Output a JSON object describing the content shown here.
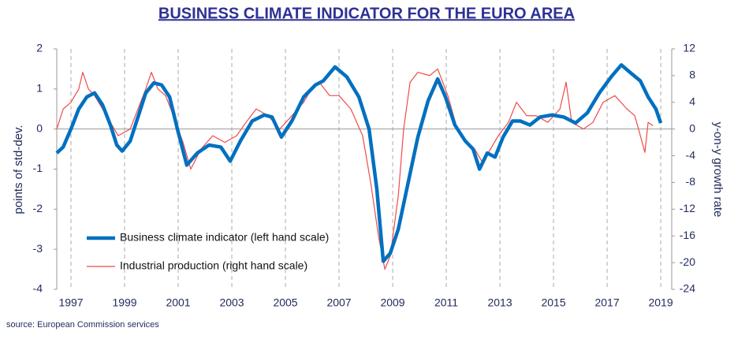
{
  "chart_data": {
    "type": "line",
    "title": "BUSINESS CLIMATE INDICATOR FOR THE EURO AREA",
    "ylabel": "points of std-dev.",
    "y2label": "y-on-y growth rate",
    "source": "source: European Commission services",
    "xlim": [
      1996.47,
      2019.41
    ],
    "xticks": [
      1997,
      1999,
      2001,
      2003,
      2005,
      2007,
      2009,
      2011,
      2013,
      2015,
      2017,
      2019
    ],
    "ylim": [
      -4,
      2
    ],
    "yticks": [
      -4,
      -3,
      -2,
      -1,
      0,
      1,
      2
    ],
    "y2lim": [
      -24,
      12
    ],
    "y2ticks": [
      -24,
      -20,
      -16,
      -12,
      -8,
      -4,
      0,
      4,
      8,
      12
    ],
    "grid": true,
    "legend": "lower left",
    "series": [
      {
        "name": "Business climate indicator (left hand scale)",
        "color": "#0070c0",
        "x": [
          1996.47,
          1996.71,
          1997.0,
          1997.29,
          1997.59,
          1997.88,
          1998.18,
          1998.47,
          1998.71,
          1998.91,
          1999.21,
          1999.5,
          1999.79,
          2000.09,
          2000.38,
          2000.68,
          2000.97,
          2001.32,
          2001.71,
          2002.15,
          2002.59,
          2002.94,
          2003.32,
          2003.76,
          2004.21,
          2004.5,
          2004.85,
          2005.24,
          2005.68,
          2006.12,
          2006.41,
          2006.85,
          2007.29,
          2007.74,
          2008.12,
          2008.41,
          2008.65,
          2008.91,
          2009.21,
          2009.59,
          2009.94,
          2010.32,
          2010.68,
          2010.97,
          2011.32,
          2011.71,
          2012.0,
          2012.24,
          2012.53,
          2012.82,
          2013.12,
          2013.47,
          2013.76,
          2014.12,
          2014.5,
          2014.94,
          2015.38,
          2015.82,
          2016.26,
          2016.71,
          2017.15,
          2017.53,
          2017.88,
          2018.24,
          2018.53,
          2018.82,
          2019.0
        ],
        "values": [
          -0.6,
          -0.45,
          0.0,
          0.5,
          0.8,
          0.9,
          0.6,
          0.1,
          -0.4,
          -0.55,
          -0.3,
          0.3,
          0.9,
          1.15,
          1.1,
          0.8,
          0.0,
          -0.9,
          -0.6,
          -0.4,
          -0.45,
          -0.8,
          -0.3,
          0.2,
          0.35,
          0.3,
          -0.2,
          0.2,
          0.8,
          1.1,
          1.2,
          1.55,
          1.3,
          0.8,
          0.0,
          -1.5,
          -3.3,
          -3.1,
          -2.5,
          -1.3,
          -0.2,
          0.7,
          1.25,
          0.8,
          0.1,
          -0.3,
          -0.5,
          -1.0,
          -0.6,
          -0.7,
          -0.2,
          0.2,
          0.2,
          0.1,
          0.3,
          0.35,
          0.3,
          0.15,
          0.4,
          0.9,
          1.3,
          1.6,
          1.4,
          1.2,
          0.8,
          0.5,
          0.15
        ]
      },
      {
        "name": "Industrial production (right hand scale)",
        "color": "#f04a4a",
        "axis": "y2",
        "x": [
          1996.47,
          1996.71,
          1997.0,
          1997.29,
          1997.44,
          1997.65,
          1997.88,
          1998.18,
          1998.47,
          1998.76,
          1999.21,
          1999.5,
          1999.79,
          2000.0,
          2000.24,
          2000.53,
          2000.82,
          2001.18,
          2001.47,
          2001.85,
          2002.29,
          2002.74,
          2003.18,
          2003.53,
          2003.91,
          2004.35,
          2004.79,
          2005.24,
          2005.68,
          2005.97,
          2006.26,
          2006.65,
          2007.0,
          2007.44,
          2007.88,
          2008.18,
          2008.47,
          2008.71,
          2008.91,
          2009.21,
          2009.41,
          2009.65,
          2009.94,
          2010.38,
          2010.68,
          2011.06,
          2011.41,
          2011.71,
          2012.06,
          2012.35,
          2012.65,
          2012.94,
          2013.32,
          2013.62,
          2014.0,
          2014.35,
          2014.79,
          2015.24,
          2015.47,
          2015.68,
          2016.12,
          2016.47,
          2016.85,
          2017.29,
          2017.74,
          2018.03,
          2018.24,
          2018.41,
          2018.53,
          2018.71
        ],
        "values": [
          0,
          3,
          4,
          6,
          8.5,
          6,
          5,
          3,
          1,
          -1,
          0,
          3,
          6,
          8.5,
          6,
          5,
          2,
          -2,
          -6,
          -3,
          -1,
          -2,
          -1,
          1,
          3,
          2,
          0,
          2,
          4,
          6,
          7,
          5,
          5,
          3,
          -1,
          -8,
          -16,
          -21,
          -19,
          -10,
          0,
          7,
          8.5,
          8,
          9,
          5,
          0,
          -2,
          -3,
          -5,
          -3,
          -1,
          1,
          4,
          2,
          2,
          1,
          3,
          7,
          1,
          0,
          1,
          4,
          5,
          3,
          2,
          -1,
          -3.5,
          1,
          0.5
        ]
      }
    ]
  }
}
